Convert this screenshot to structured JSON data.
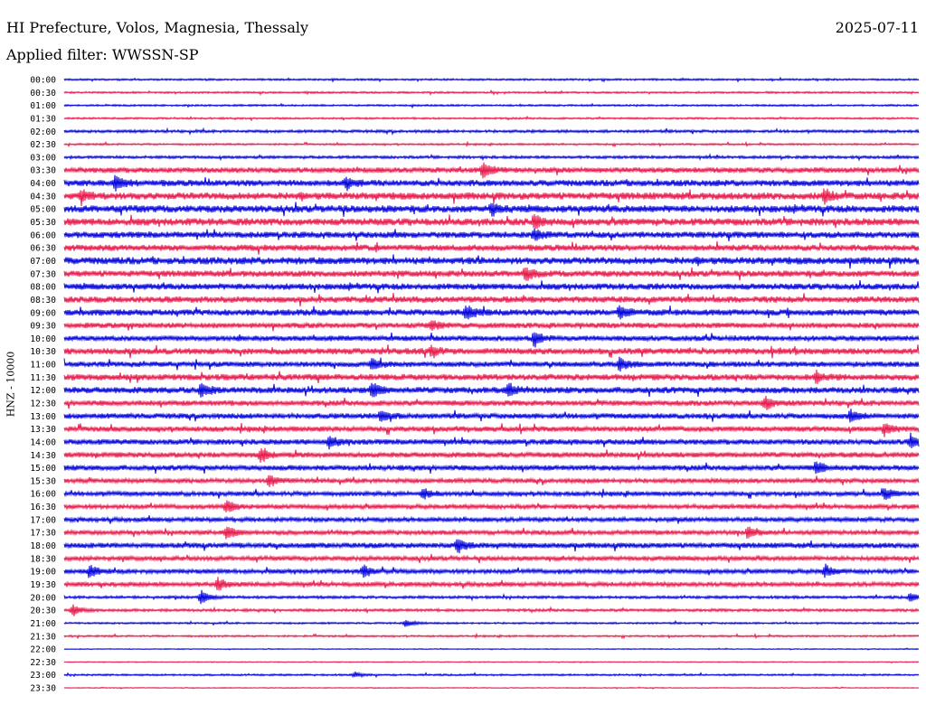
{
  "header": {
    "station": "HI Prefecture, Volos, Magnesia, Thessaly",
    "date": "2025-07-11",
    "filter": "Applied filter: WWSSN-SP"
  },
  "chart_data": {
    "type": "line",
    "title": "HI Prefecture, Volos, Magnesia, Thessaly",
    "ylabel": "HNZ - 10000",
    "colors": [
      "#0000dd",
      "#e8174a"
    ],
    "rows": [
      "00:00",
      "00:30",
      "01:00",
      "01:30",
      "02:00",
      "02:30",
      "03:00",
      "03:30",
      "04:00",
      "04:30",
      "05:00",
      "05:30",
      "06:00",
      "06:30",
      "07:00",
      "07:30",
      "08:00",
      "08:30",
      "09:00",
      "09:30",
      "10:00",
      "10:30",
      "11:00",
      "11:30",
      "12:00",
      "12:30",
      "13:00",
      "13:30",
      "14:00",
      "14:30",
      "15:00",
      "15:30",
      "16:00",
      "16:30",
      "17:00",
      "17:30",
      "18:00",
      "18:30",
      "19:00",
      "19:30",
      "20:00",
      "20:30",
      "21:00",
      "21:30",
      "22:00",
      "22:30",
      "23:00",
      "23:30"
    ],
    "noise_level": [
      1,
      1,
      1,
      1,
      1.5,
      1,
      1.5,
      3,
      3.5,
      4,
      4,
      4,
      3.5,
      3.5,
      4,
      3.5,
      3.5,
      3.5,
      3.5,
      3,
      3,
      3.5,
      3,
      3.5,
      3.5,
      3,
      3,
      3,
      3,
      3,
      3,
      2.5,
      2.5,
      2.5,
      2.5,
      2.5,
      3,
      2.5,
      2.5,
      2.5,
      1.5,
      1.5,
      1,
      1,
      0.5,
      0.5,
      1,
      0.5
    ],
    "events": [
      {
        "row": 7,
        "t": 0.49,
        "amp": 10
      },
      {
        "row": 8,
        "t": 0.06,
        "amp": 8
      },
      {
        "row": 8,
        "t": 0.33,
        "amp": 7
      },
      {
        "row": 9,
        "t": 0.89,
        "amp": 8
      },
      {
        "row": 9,
        "t": 0.02,
        "amp": 6
      },
      {
        "row": 10,
        "t": 0.5,
        "amp": 7
      },
      {
        "row": 11,
        "t": 0.55,
        "amp": 7
      },
      {
        "row": 12,
        "t": 0.55,
        "amp": 6
      },
      {
        "row": 15,
        "t": 0.54,
        "amp": 8
      },
      {
        "row": 18,
        "t": 0.47,
        "amp": 9
      },
      {
        "row": 18,
        "t": 0.65,
        "amp": 7
      },
      {
        "row": 19,
        "t": 0.43,
        "amp": 6
      },
      {
        "row": 20,
        "t": 0.55,
        "amp": 8
      },
      {
        "row": 21,
        "t": 0.43,
        "amp": 6
      },
      {
        "row": 22,
        "t": 0.65,
        "amp": 8
      },
      {
        "row": 22,
        "t": 0.36,
        "amp": 7
      },
      {
        "row": 23,
        "t": 0.88,
        "amp": 7
      },
      {
        "row": 24,
        "t": 0.16,
        "amp": 8
      },
      {
        "row": 24,
        "t": 0.36,
        "amp": 8
      },
      {
        "row": 24,
        "t": 0.52,
        "amp": 7
      },
      {
        "row": 25,
        "t": 0.82,
        "amp": 7
      },
      {
        "row": 26,
        "t": 0.37,
        "amp": 6
      },
      {
        "row": 26,
        "t": 0.92,
        "amp": 7
      },
      {
        "row": 27,
        "t": 0.96,
        "amp": 7
      },
      {
        "row": 28,
        "t": 0.31,
        "amp": 7
      },
      {
        "row": 28,
        "t": 0.99,
        "amp": 8
      },
      {
        "row": 29,
        "t": 0.23,
        "amp": 9
      },
      {
        "row": 30,
        "t": 0.88,
        "amp": 7
      },
      {
        "row": 31,
        "t": 0.24,
        "amp": 7
      },
      {
        "row": 32,
        "t": 0.42,
        "amp": 6
      },
      {
        "row": 32,
        "t": 0.96,
        "amp": 7
      },
      {
        "row": 33,
        "t": 0.19,
        "amp": 8
      },
      {
        "row": 35,
        "t": 0.19,
        "amp": 8
      },
      {
        "row": 35,
        "t": 0.8,
        "amp": 7
      },
      {
        "row": 36,
        "t": 0.46,
        "amp": 8
      },
      {
        "row": 38,
        "t": 0.03,
        "amp": 7
      },
      {
        "row": 38,
        "t": 0.35,
        "amp": 7
      },
      {
        "row": 38,
        "t": 0.89,
        "amp": 7
      },
      {
        "row": 39,
        "t": 0.18,
        "amp": 7
      },
      {
        "row": 40,
        "t": 0.16,
        "amp": 9
      },
      {
        "row": 40,
        "t": 0.99,
        "amp": 5
      },
      {
        "row": 41,
        "t": 0.01,
        "amp": 8
      },
      {
        "row": 42,
        "t": 0.4,
        "amp": 5
      },
      {
        "row": 46,
        "t": 0.34,
        "amp": 3
      }
    ]
  }
}
